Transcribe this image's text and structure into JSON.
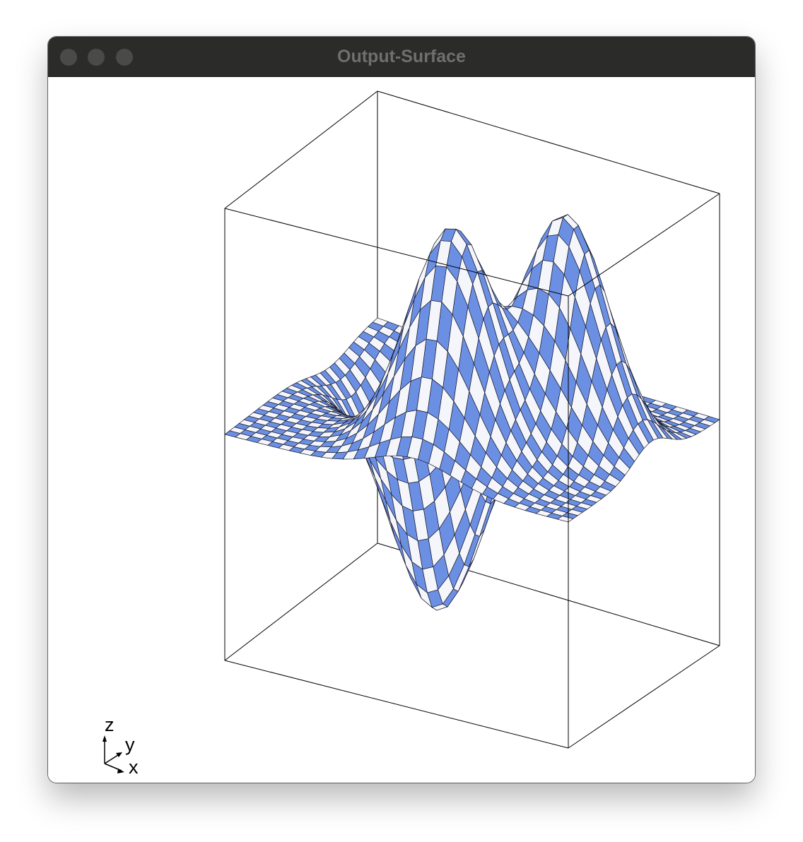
{
  "window": {
    "title": "Output-Surface"
  },
  "orientation_triad": {
    "x_label": "x",
    "y_label": "y",
    "z_label": "z"
  },
  "colors": {
    "surface_blue": "#6b8fe3",
    "surface_light": "#f4f6fb",
    "mesh_line": "#1a1a2a",
    "box_line": "#000000",
    "titlebar": "#2b2b2a"
  },
  "chart_data": {
    "type": "surface3d",
    "function": "x*exp(-x^2-y^2) style double peak / single trough surface",
    "x_range": [
      -2,
      2
    ],
    "y_range": [
      -2,
      2
    ],
    "bounding_box": true,
    "axes_labels_visible": false,
    "mesh": true
  }
}
